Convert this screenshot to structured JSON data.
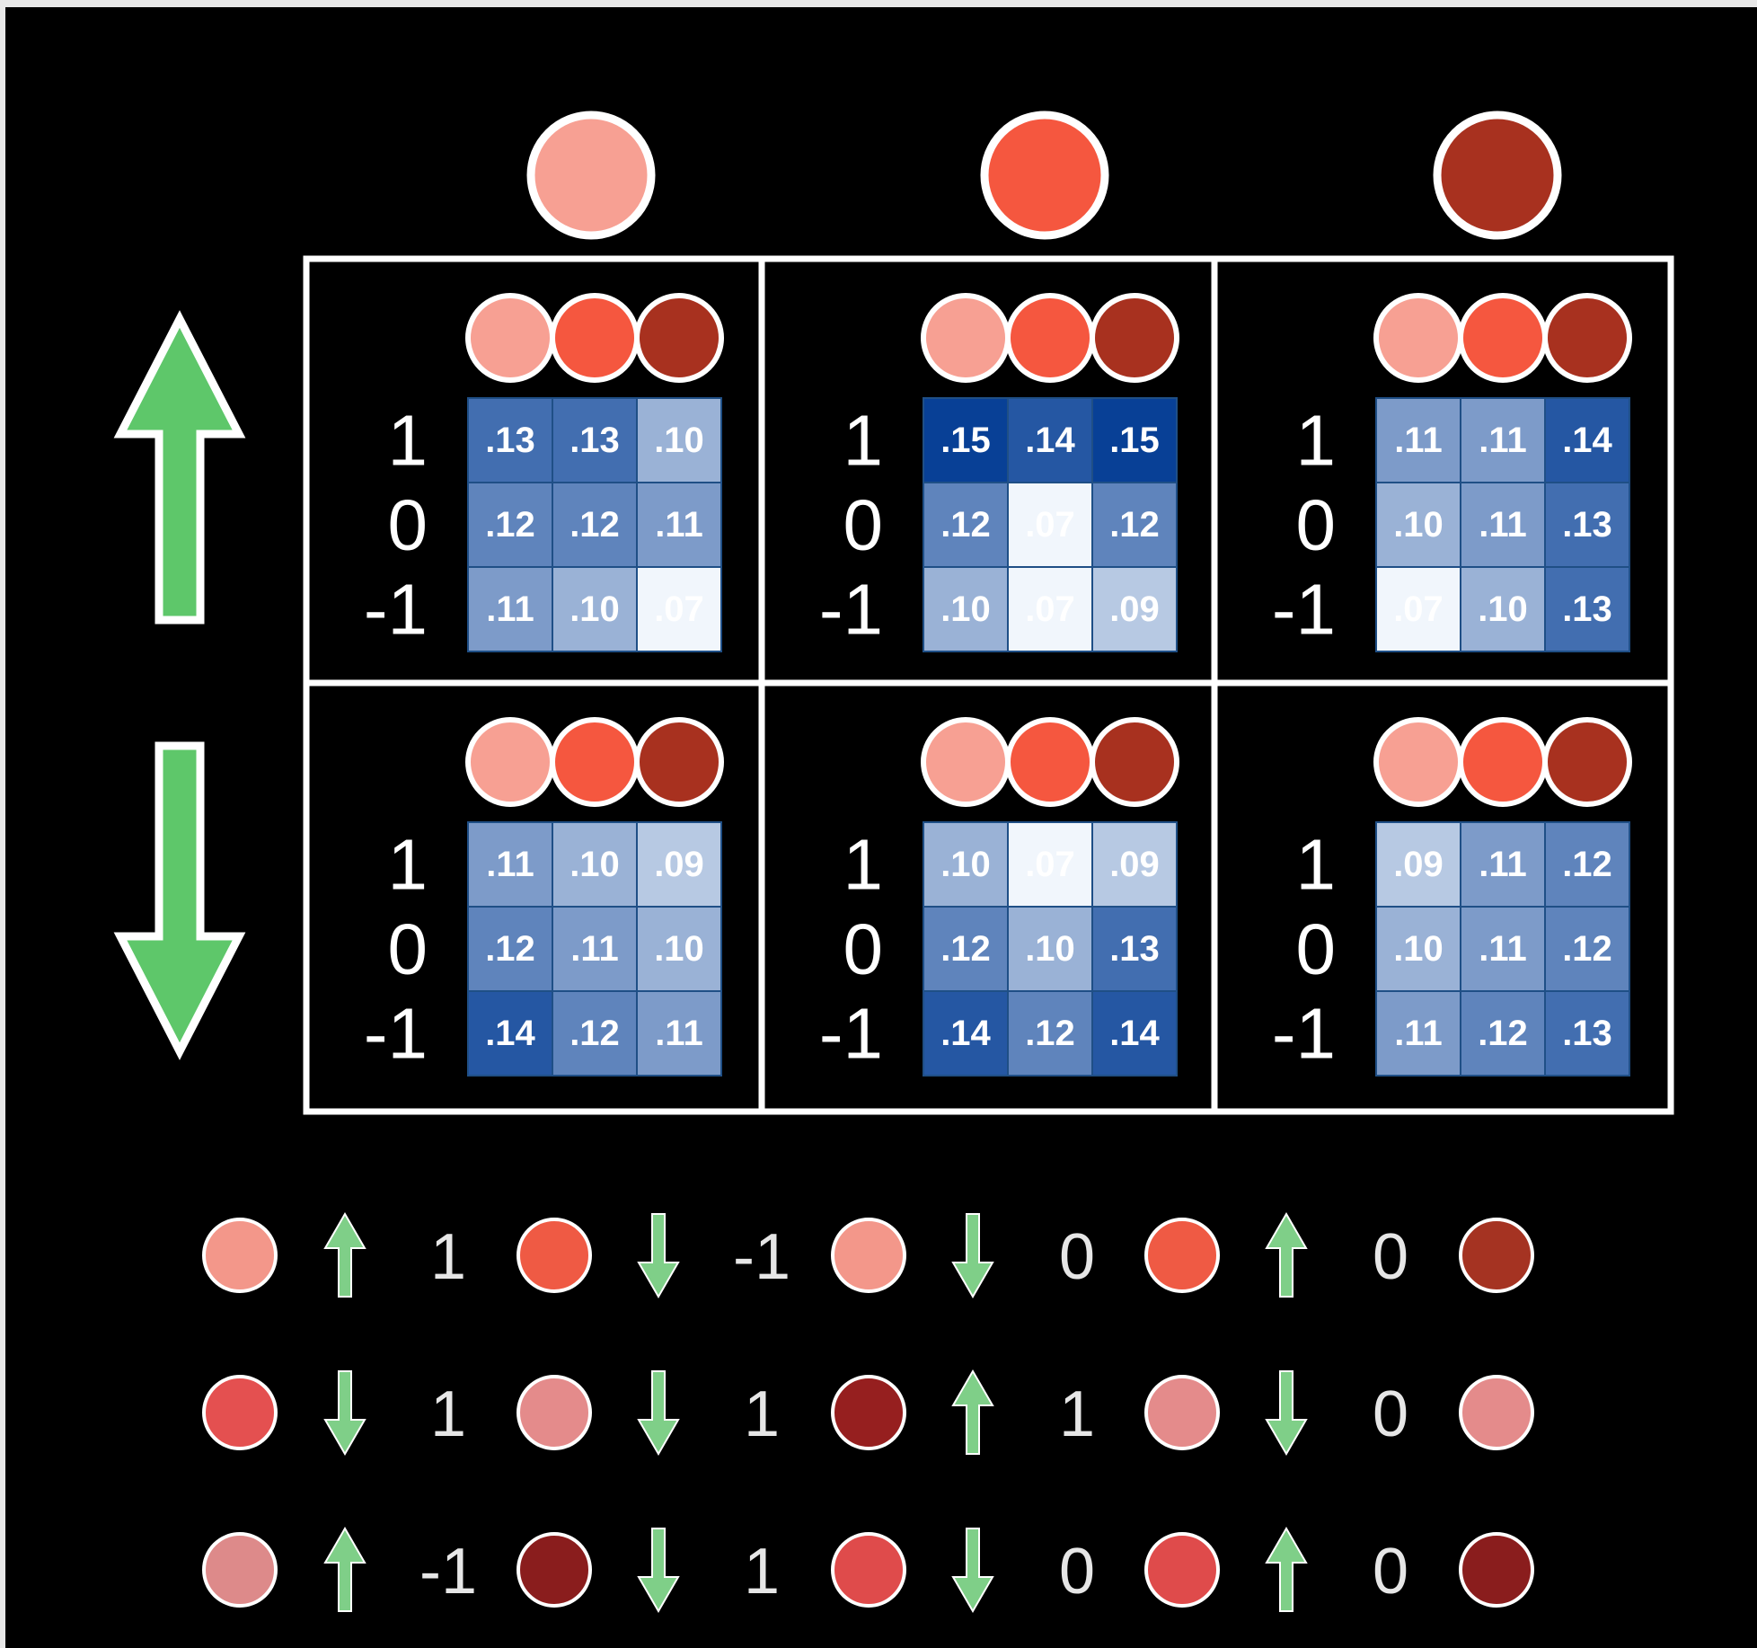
{
  "colors": {
    "background": "#000000",
    "border": "#ffffff",
    "arrow_green": "#5ec76a",
    "arrow_outline": "#ffffff",
    "circle_light": "#f7a093",
    "circle_mid": "#f5573f",
    "circle_dark": "#a8311f"
  },
  "top_circles": [
    {
      "name": "light",
      "color": "#f7a093"
    },
    {
      "name": "mid",
      "color": "#f5573f"
    },
    {
      "name": "dark",
      "color": "#a8311f"
    }
  ],
  "row_arrows": [
    {
      "direction": "up",
      "icon": "up-arrow-icon"
    },
    {
      "direction": "down",
      "icon": "down-arrow-icon"
    }
  ],
  "panels": {
    "row_labels": [
      "1",
      "0",
      "-1"
    ],
    "column_circle_colors": [
      "#f7a093",
      "#f5573f",
      "#a8311f"
    ],
    "grid": [
      [
        {
          "cells": [
            [
              ".13",
              ".13",
              ".10"
            ],
            [
              ".12",
              ".12",
              ".11"
            ],
            [
              ".11",
              ".10",
              ".07"
            ]
          ]
        },
        {
          "cells": [
            [
              ".15",
              ".14",
              ".15"
            ],
            [
              ".12",
              ".07",
              ".12"
            ],
            [
              ".10",
              ".07",
              ".09"
            ]
          ]
        },
        {
          "cells": [
            [
              ".11",
              ".11",
              ".14"
            ],
            [
              ".10",
              ".11",
              ".13"
            ],
            [
              ".07",
              ".10",
              ".13"
            ]
          ]
        }
      ],
      [
        {
          "cells": [
            [
              ".11",
              ".10",
              ".09"
            ],
            [
              ".12",
              ".11",
              ".10"
            ],
            [
              ".14",
              ".12",
              ".11"
            ]
          ]
        },
        {
          "cells": [
            [
              ".10",
              ".07",
              ".09"
            ],
            [
              ".12",
              ".10",
              ".13"
            ],
            [
              ".14",
              ".12",
              ".14"
            ]
          ]
        },
        {
          "cells": [
            [
              ".09",
              ".11",
              ".12"
            ],
            [
              ".10",
              ".11",
              ".12"
            ],
            [
              ".11",
              ".12",
              ".13"
            ]
          ]
        }
      ]
    ]
  },
  "sequences": [
    {
      "items": [
        {
          "type": "circle",
          "color": "#f3978a"
        },
        {
          "type": "arrow",
          "dir": "up"
        },
        {
          "type": "text",
          "text": "1"
        },
        {
          "type": "circle",
          "color": "#ef5a44"
        },
        {
          "type": "arrow",
          "dir": "down"
        },
        {
          "type": "text",
          "text": "-1"
        },
        {
          "type": "circle",
          "color": "#f3978a"
        },
        {
          "type": "arrow",
          "dir": "down"
        },
        {
          "type": "text",
          "text": "0"
        },
        {
          "type": "circle",
          "color": "#ef5a44"
        },
        {
          "type": "arrow",
          "dir": "up"
        },
        {
          "type": "text",
          "text": "0"
        },
        {
          "type": "circle",
          "color": "#a53322"
        }
      ]
    },
    {
      "items": [
        {
          "type": "circle",
          "color": "#e45050"
        },
        {
          "type": "arrow",
          "dir": "down"
        },
        {
          "type": "text",
          "text": "1"
        },
        {
          "type": "circle",
          "color": "#e48b8b"
        },
        {
          "type": "arrow",
          "dir": "down"
        },
        {
          "type": "text",
          "text": "1"
        },
        {
          "type": "circle",
          "color": "#961f1f"
        },
        {
          "type": "arrow",
          "dir": "up"
        },
        {
          "type": "text",
          "text": "1"
        },
        {
          "type": "circle",
          "color": "#e48b8b"
        },
        {
          "type": "arrow",
          "dir": "down"
        },
        {
          "type": "text",
          "text": "0"
        },
        {
          "type": "circle",
          "color": "#e48b8b"
        }
      ]
    },
    {
      "items": [
        {
          "type": "circle",
          "color": "#dd8a8a"
        },
        {
          "type": "arrow",
          "dir": "up"
        },
        {
          "type": "text",
          "text": "-1"
        },
        {
          "type": "circle",
          "color": "#8a1d1d"
        },
        {
          "type": "arrow",
          "dir": "down"
        },
        {
          "type": "text",
          "text": "1"
        },
        {
          "type": "circle",
          "color": "#df4b4b"
        },
        {
          "type": "arrow",
          "dir": "down"
        },
        {
          "type": "text",
          "text": "0"
        },
        {
          "type": "circle",
          "color": "#df4b4b"
        },
        {
          "type": "arrow",
          "dir": "up"
        },
        {
          "type": "text",
          "text": "0"
        },
        {
          "type": "circle",
          "color": "#8a1d1d"
        }
      ]
    }
  ]
}
